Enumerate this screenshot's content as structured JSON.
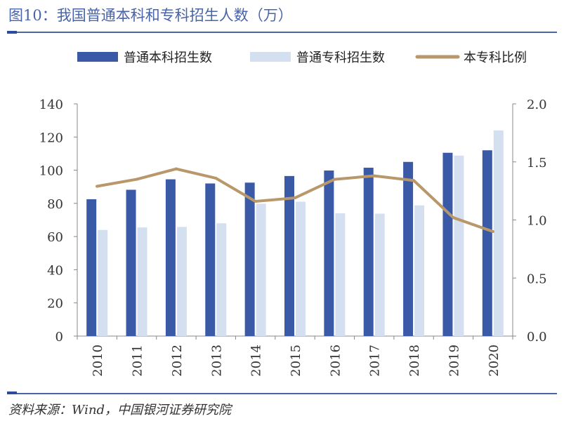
{
  "header": {
    "title": "图10：我国普通本科和专科招生人数（万）"
  },
  "footer": {
    "source": "资料来源：Wind，中国银河证券研究院"
  },
  "colors": {
    "bar_bachelor": "#3a5aa8",
    "bar_college": "#d4dff0",
    "ratio_line": "#b8976a",
    "rule": "#4a64a8"
  },
  "chart_data": {
    "type": "bar",
    "title": "我国普通本科和专科招生人数（万）",
    "categories": [
      "2010",
      "2011",
      "2012",
      "2013",
      "2014",
      "2015",
      "2016",
      "2017",
      "2018",
      "2019",
      "2020"
    ],
    "series": [
      {
        "name": "普通本科招生数",
        "kind": "bar",
        "axis": "left",
        "values": [
          82.5,
          88.2,
          94.5,
          92.0,
          92.5,
          96.5,
          99.8,
          101.5,
          105.0,
          110.5,
          112.0
        ]
      },
      {
        "name": "普通专科招生数",
        "kind": "bar",
        "axis": "left",
        "values": [
          64.0,
          65.5,
          65.8,
          68.0,
          79.8,
          81.0,
          74.0,
          73.8,
          78.8,
          108.8,
          124.0
        ]
      },
      {
        "name": "本专科比例",
        "kind": "line",
        "axis": "right",
        "values": [
          1.29,
          1.35,
          1.44,
          1.36,
          1.16,
          1.19,
          1.35,
          1.38,
          1.34,
          1.02,
          0.9
        ]
      }
    ],
    "left_axis": {
      "min": 0,
      "max": 140,
      "ticks": [
        "0",
        "20",
        "40",
        "60",
        "80",
        "100",
        "120",
        "140"
      ]
    },
    "right_axis": {
      "min": 0,
      "max": 2.0,
      "ticks": [
        "0.0",
        "0.5",
        "1.0",
        "1.5",
        "2.0"
      ]
    },
    "legend": [
      "普通本科招生数",
      "普通专科招生数",
      "本专科比例"
    ],
    "legend_position": "top",
    "grid": false
  }
}
